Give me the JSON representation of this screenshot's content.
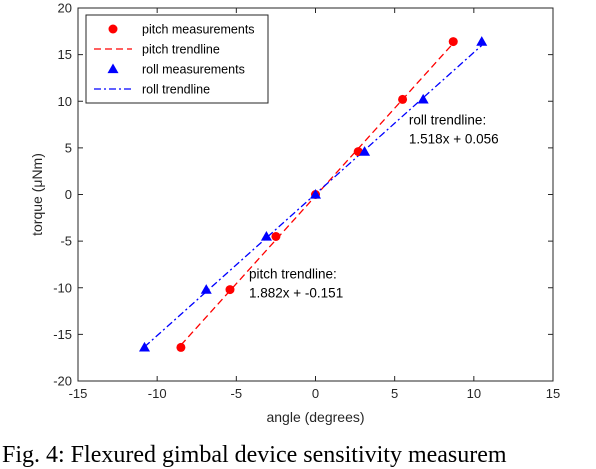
{
  "chart_data": {
    "type": "scatter",
    "xlabel": "angle (degrees)",
    "ylabel": "torque (μNm)",
    "xlim": [
      -15,
      15
    ],
    "ylim": [
      -20,
      20
    ],
    "xticks": [
      "-15",
      "-10",
      "-5",
      "0",
      "5",
      "10",
      "15"
    ],
    "yticks": [
      "-20",
      "-15",
      "-10",
      "-5",
      "0",
      "5",
      "10",
      "15",
      "20"
    ],
    "grid": false,
    "legend_position": "top-left",
    "series": [
      {
        "name": "pitch measurements",
        "kind": "markers",
        "marker": "circle",
        "color": "#ff0000",
        "points": [
          [
            -8.5,
            -16.4
          ],
          [
            -5.4,
            -10.2
          ],
          [
            -2.5,
            -4.5
          ],
          [
            0.0,
            0.0
          ],
          [
            2.7,
            4.6
          ],
          [
            5.5,
            10.2
          ],
          [
            8.7,
            16.4
          ]
        ]
      },
      {
        "name": "pitch trendline",
        "kind": "line",
        "dash": "dashed",
        "color": "#ff0000",
        "points": [
          [
            -8.5,
            -16.15
          ],
          [
            8.7,
            16.22
          ]
        ]
      },
      {
        "name": "roll measurements",
        "kind": "markers",
        "marker": "triangle",
        "color": "#0000ff",
        "points": [
          [
            -10.8,
            -16.4
          ],
          [
            -6.9,
            -10.2
          ],
          [
            -3.1,
            -4.5
          ],
          [
            0.0,
            0.0
          ],
          [
            3.1,
            4.6
          ],
          [
            6.8,
            10.2
          ],
          [
            10.5,
            16.4
          ]
        ]
      },
      {
        "name": "roll trendline",
        "kind": "line",
        "dash": "dash-dot",
        "color": "#0000ff",
        "points": [
          [
            -10.8,
            -16.34
          ],
          [
            10.5,
            15.99
          ]
        ]
      }
    ],
    "annotations": [
      {
        "lines": [
          "roll trendline:",
          "1.518x + 0.056"
        ],
        "x": 5.9,
        "y": 7.5
      },
      {
        "lines": [
          "pitch trendline:",
          "1.882x + -0.151"
        ],
        "x": -4.2,
        "y": -9.0
      }
    ]
  },
  "caption": "Fig. 4: Flexured gimbal device sensitivity measurem"
}
